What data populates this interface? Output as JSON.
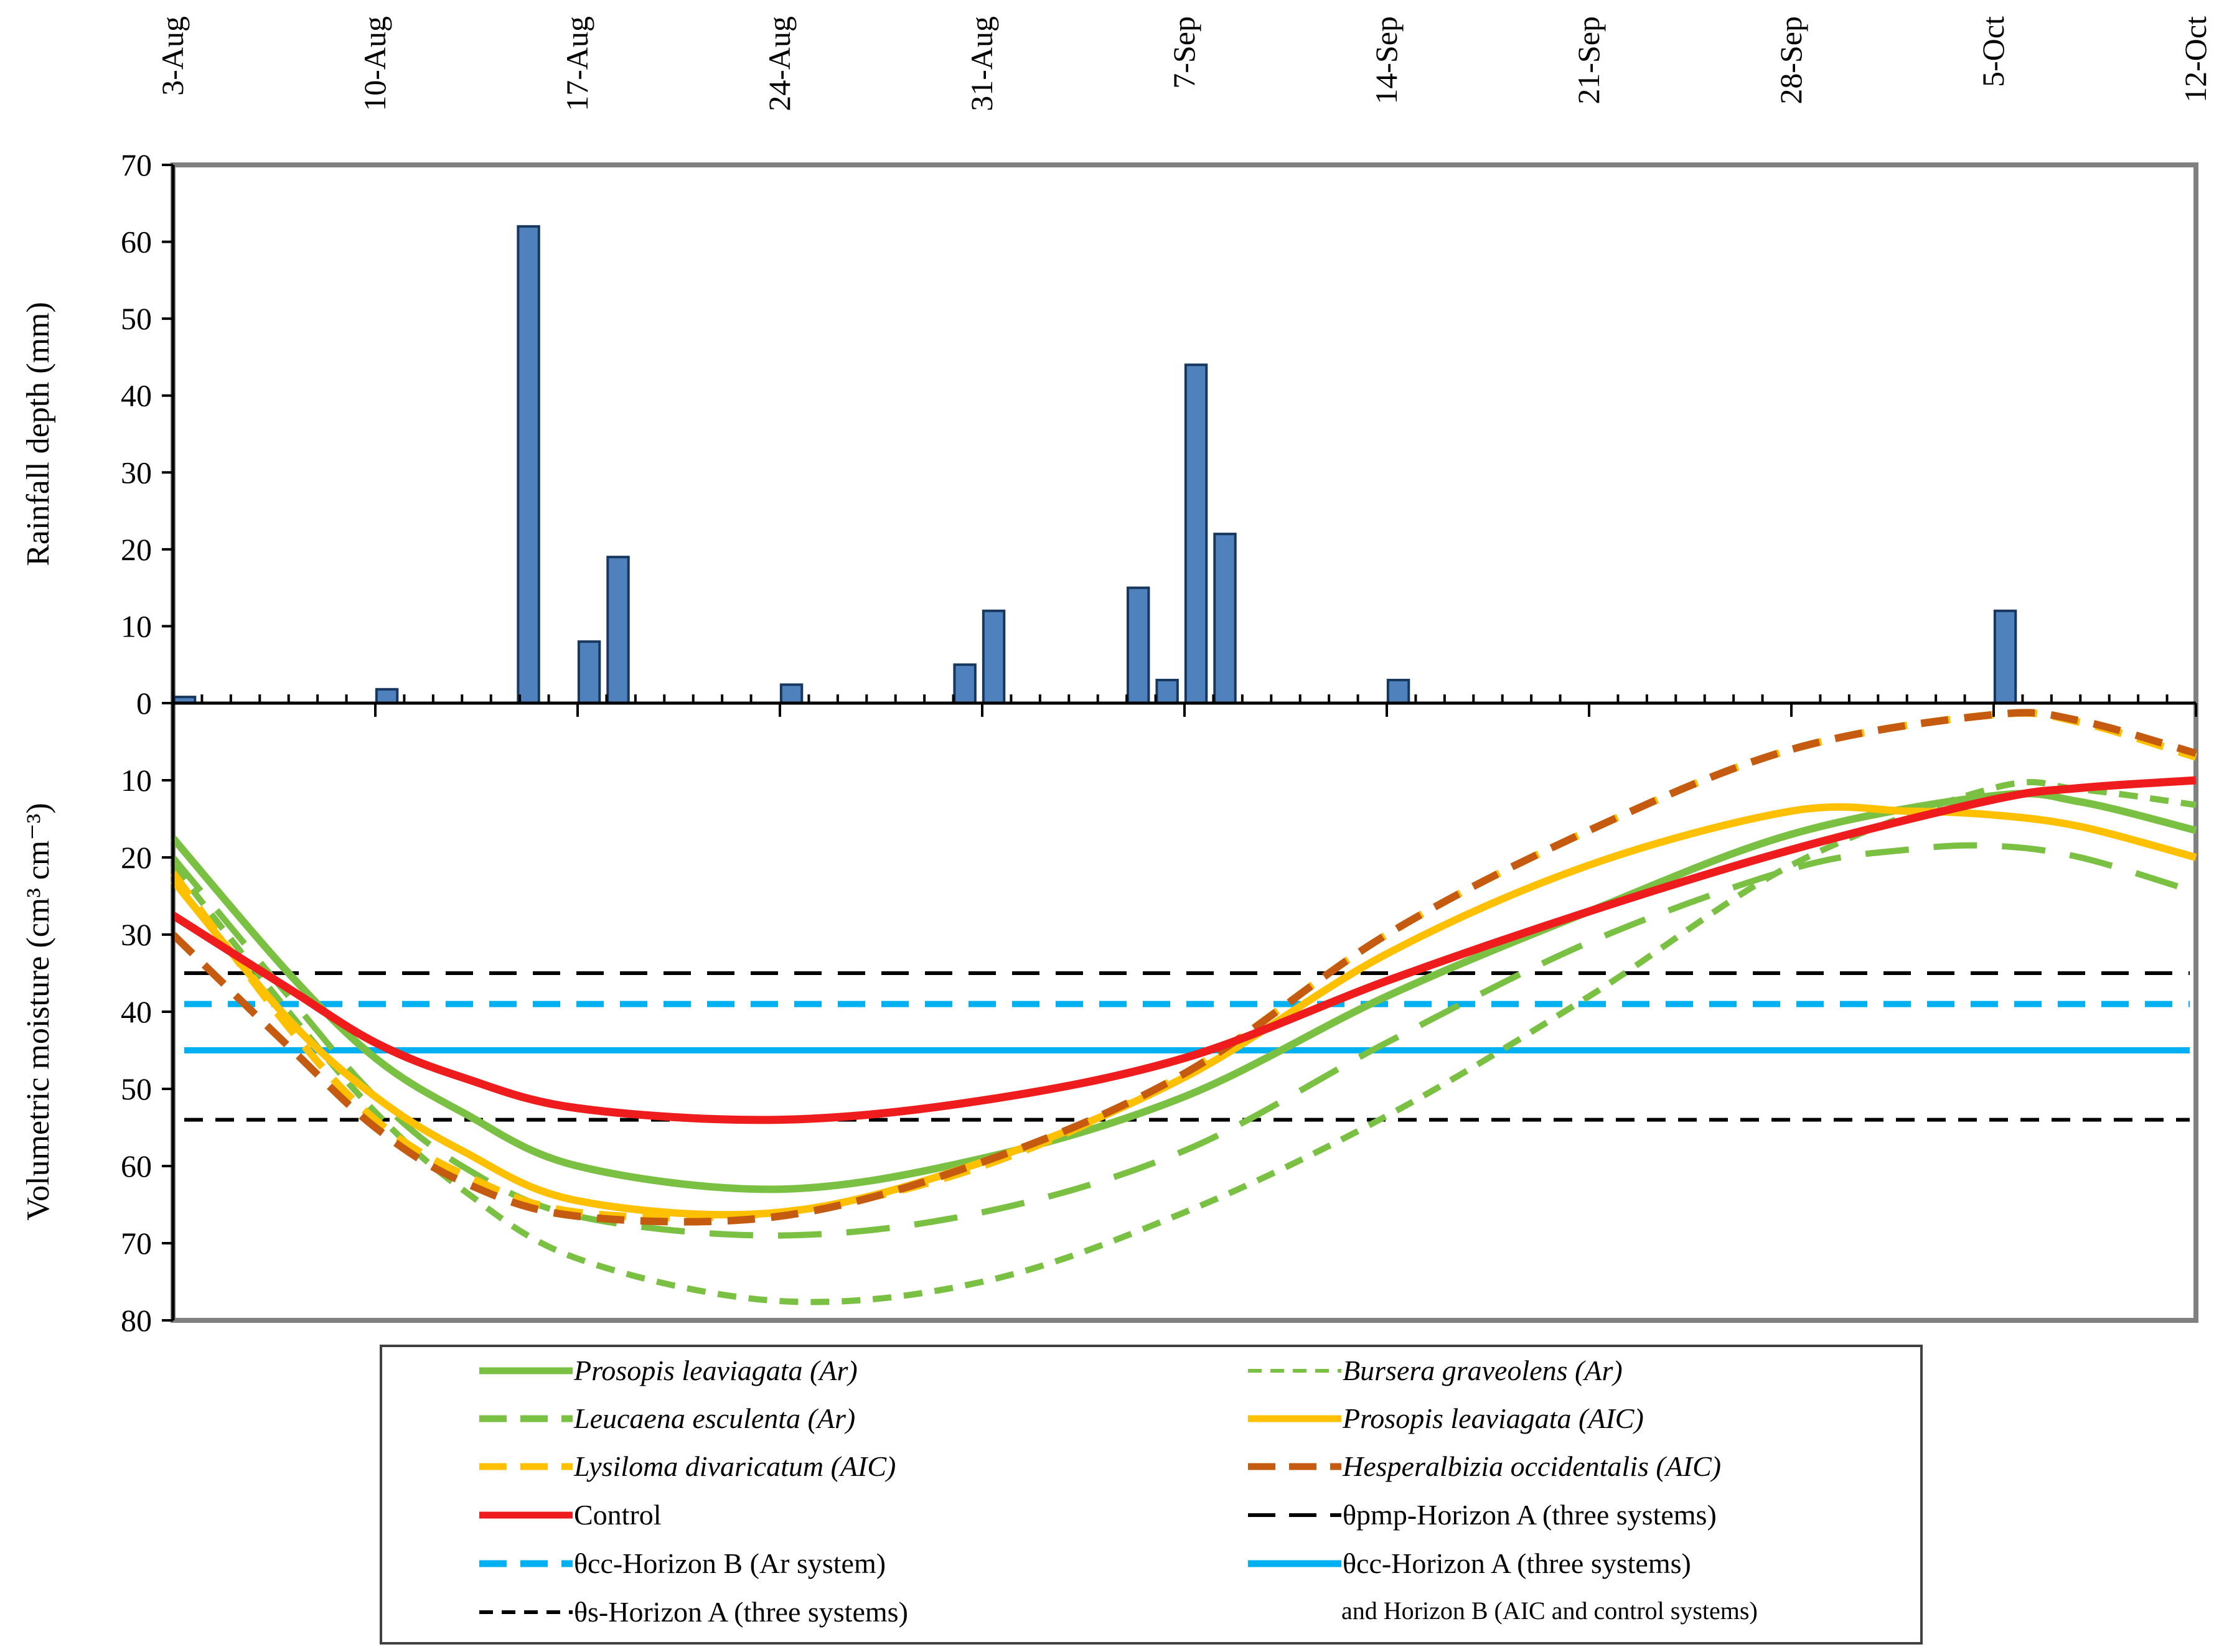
{
  "chart_data": {
    "type": "bar+line",
    "x_axis": {
      "ticks": [
        "3-Aug",
        "10-Aug",
        "17-Aug",
        "24-Aug",
        "31-Aug",
        "7-Sep",
        "14-Sep",
        "21-Sep",
        "28-Sep",
        "5-Oct",
        "12-Oct"
      ],
      "range_days": [
        0,
        70
      ],
      "tick_step_days": 7
    },
    "rainfall": {
      "ylabel": "Rainfall depth (mm)",
      "ylim": [
        0,
        70
      ],
      "yticks": [
        "70",
        "60",
        "50",
        "40",
        "30",
        "20",
        "10",
        "0"
      ],
      "bars": [
        {
          "day": 0.4,
          "value": 0.8
        },
        {
          "day": 7.4,
          "value": 1.8
        },
        {
          "day": 12.3,
          "value": 62
        },
        {
          "day": 14.4,
          "value": 8
        },
        {
          "day": 15.4,
          "value": 19
        },
        {
          "day": 21.4,
          "value": 2.4
        },
        {
          "day": 27.4,
          "value": 5
        },
        {
          "day": 28.4,
          "value": 12
        },
        {
          "day": 33.4,
          "value": 15
        },
        {
          "day": 34.4,
          "value": 3
        },
        {
          "day": 35.4,
          "value": 44
        },
        {
          "day": 36.4,
          "value": 22
        },
        {
          "day": 42.4,
          "value": 3
        },
        {
          "day": 63.4,
          "value": 12
        }
      ]
    },
    "moisture": {
      "ylabel": "Volumetric moisture (cm³ cm⁻³)",
      "ylim": [
        0,
        80
      ],
      "yticks": [
        "10",
        "20",
        "30",
        "40",
        "50",
        "60",
        "70",
        "80"
      ],
      "series": [
        {
          "name": "Prosopis leaviagata (Ar)",
          "style": "solid",
          "color": "#7ac143",
          "width": 12,
          "points": [
            [
              0,
              17.5
            ],
            [
              4,
              35
            ],
            [
              7,
              46
            ],
            [
              10,
              53
            ],
            [
              14,
              60
            ],
            [
              21,
              63
            ],
            [
              28,
              59
            ],
            [
              35,
              51
            ],
            [
              42,
              38
            ],
            [
              49,
              27
            ],
            [
              56,
              17
            ],
            [
              63,
              12
            ],
            [
              66,
              12.8
            ],
            [
              70,
              16.5
            ]
          ]
        },
        {
          "name": "Bursera graveolens (Ar)",
          "style": "short-dash",
          "color": "#7ac143",
          "width": 10,
          "points": [
            [
              0,
              21
            ],
            [
              4,
              40
            ],
            [
              7,
              53
            ],
            [
              10,
              63
            ],
            [
              14,
              72
            ],
            [
              21,
              77.5
            ],
            [
              28,
              75
            ],
            [
              35,
              66
            ],
            [
              42,
              53.5
            ],
            [
              49,
              38
            ],
            [
              56,
              21
            ],
            [
              63,
              11
            ],
            [
              66,
              11.2
            ],
            [
              70,
              13.2
            ]
          ]
        },
        {
          "name": "Leucaena esculenta (Ar)",
          "style": "long-dash",
          "color": "#7ac143",
          "width": 10,
          "points": [
            [
              0,
              20
            ],
            [
              4,
              38
            ],
            [
              7,
              51
            ],
            [
              10,
              60
            ],
            [
              14,
              66.5
            ],
            [
              21,
              69
            ],
            [
              28,
              66
            ],
            [
              35,
              58
            ],
            [
              42,
              44
            ],
            [
              49,
              31
            ],
            [
              56,
              21.5
            ],
            [
              60,
              19
            ],
            [
              63,
              18.5
            ],
            [
              66,
              20
            ],
            [
              70,
              24.5
            ]
          ]
        },
        {
          "name": "Prosopis leaviagata (AIC)",
          "style": "solid",
          "color": "#ffc000",
          "width": 12,
          "points": [
            [
              0,
              23
            ],
            [
              4,
              41
            ],
            [
              7,
              51
            ],
            [
              10,
              58
            ],
            [
              14,
              64.5
            ],
            [
              21,
              66
            ],
            [
              28,
              59.5
            ],
            [
              35,
              48.5
            ],
            [
              42,
              32.5
            ],
            [
              49,
              21
            ],
            [
              56,
              14
            ],
            [
              60,
              14
            ],
            [
              63,
              14.5
            ],
            [
              66,
              16
            ],
            [
              70,
              20
            ]
          ]
        },
        {
          "name": "Lysiloma divaricatum (AIC)",
          "style": "dash",
          "color": "#ffc000",
          "width": 12,
          "points": [
            [
              0,
              22
            ],
            [
              4,
              42
            ],
            [
              7,
              54
            ],
            [
              10,
              61
            ],
            [
              14,
              66
            ],
            [
              21,
              66
            ],
            [
              28,
              60
            ],
            [
              35,
              48
            ],
            [
              42,
              30
            ],
            [
              49,
              16.5
            ],
            [
              56,
              6
            ],
            [
              63,
              1.5
            ],
            [
              66,
              2.5
            ],
            [
              70,
              7
            ]
          ]
        },
        {
          "name": "Hesperalbizia occidentalis (AIC)",
          "style": "dash",
          "color": "#c55a11",
          "width": 12,
          "points": [
            [
              0,
              30
            ],
            [
              4,
              44.5
            ],
            [
              7,
              55
            ],
            [
              10,
              62
            ],
            [
              14,
              66.5
            ],
            [
              21,
              66.5
            ],
            [
              28,
              59.5
            ],
            [
              35,
              48
            ],
            [
              42,
              30
            ],
            [
              49,
              16.5
            ],
            [
              56,
              6
            ],
            [
              63,
              1.5
            ],
            [
              66,
              2.3
            ],
            [
              70,
              6.5
            ]
          ]
        },
        {
          "name": "Control",
          "style": "solid",
          "color": "#ee1c1c",
          "width": 13,
          "points": [
            [
              0,
              27.5
            ],
            [
              4,
              37
            ],
            [
              7,
              44
            ],
            [
              10,
              48.5
            ],
            [
              14,
              52.5
            ],
            [
              21,
              54
            ],
            [
              28,
              51.5
            ],
            [
              35,
              46
            ],
            [
              42,
              36
            ],
            [
              49,
              27
            ],
            [
              56,
              19
            ],
            [
              63,
              12.5
            ],
            [
              66,
              11
            ],
            [
              70,
              10
            ]
          ]
        }
      ],
      "reference_lines": [
        {
          "name": "θpmp-Horizon A (three systems)",
          "value": 35,
          "style": "dash",
          "color": "#000000",
          "width": 6
        },
        {
          "name": "θcc-Horizon B (Ar system)",
          "value": 39,
          "style": "dash",
          "color": "#00b0f0",
          "width": 10
        },
        {
          "name": "θcc-Horizon A (three systems)",
          "value": 45,
          "style": "solid",
          "color": "#00b0f0",
          "width": 10
        },
        {
          "name": "θs-Horizon A (three systems)",
          "value": 54,
          "style": "short-dash",
          "color": "#000000",
          "width": 6
        }
      ]
    }
  },
  "legend": {
    "items": [
      {
        "label": "Prosopis leaviagata (Ar)",
        "italic": true,
        "style": "solid",
        "color": "#7ac143"
      },
      {
        "label": "Bursera graveolens (Ar)",
        "italic": true,
        "style": "short-dash",
        "color": "#7ac143"
      },
      {
        "label": "Leucaena esculenta (Ar)",
        "italic": true,
        "style": "long-dash",
        "color": "#7ac143"
      },
      {
        "label": "Prosopis leaviagata (AIC)",
        "italic": true,
        "style": "solid",
        "color": "#ffc000"
      },
      {
        "label": "Lysiloma divaricatum (AIC)",
        "italic": true,
        "style": "dash",
        "color": "#ffc000"
      },
      {
        "label": "Hesperalbizia occidentalis (AIC)",
        "italic": true,
        "style": "dash",
        "color": "#c55a11"
      },
      {
        "label": "Control",
        "italic": false,
        "style": "solid",
        "color": "#ee1c1c"
      },
      {
        "label": "θpmp-Horizon A (three systems)",
        "italic": false,
        "style": "dash",
        "color": "#000000"
      },
      {
        "label": "θcc-Horizon B (Ar system)",
        "italic": false,
        "style": "dash",
        "color": "#00b0f0"
      },
      {
        "label": "θcc-Horizon A (three systems)",
        "italic": false,
        "style": "solid",
        "color": "#00b0f0"
      },
      {
        "label": "θs-Horizon A (three systems)",
        "italic": false,
        "style": "short-dash",
        "color": "#000000"
      }
    ],
    "continuation": "and Horizon B (AIC and control systems)"
  }
}
